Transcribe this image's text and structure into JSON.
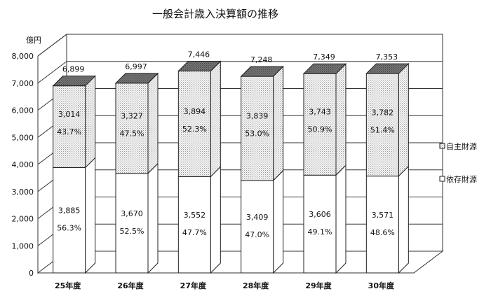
{
  "chart_data": {
    "type": "bar",
    "stacked": true,
    "title": "一般会計歳入決算額の推移",
    "ylabel": "億円",
    "ylim": [
      0,
      8000
    ],
    "yticks": [
      "0",
      "1,000",
      "2,000",
      "3,000",
      "4,000",
      "5,000",
      "6,000",
      "7,000",
      "8,000"
    ],
    "categories": [
      "25年度",
      "26年度",
      "27年度",
      "28年度",
      "29年度",
      "30年度"
    ],
    "totals": [
      "6,899",
      "6,997",
      "7,446",
      "7,248",
      "7,349",
      "7,353"
    ],
    "series": [
      {
        "name": "依存財源",
        "values": [
          3885,
          3670,
          3552,
          3409,
          3606,
          3571
        ],
        "labels": [
          "3,885",
          "3,670",
          "3,552",
          "3,409",
          "3,606",
          "3,571"
        ],
        "percents": [
          "56.3%",
          "52.5%",
          "47.7%",
          "47.0%",
          "49.1%",
          "48.6%"
        ],
        "color": "#ffffff"
      },
      {
        "name": "自主財源",
        "values": [
          3014,
          3327,
          3894,
          3839,
          3743,
          3782
        ],
        "labels": [
          "3,014",
          "3,327",
          "3,894",
          "3,839",
          "3,743",
          "3,782"
        ],
        "percents": [
          "43.7%",
          "47.5%",
          "52.3%",
          "53.0%",
          "50.9%",
          "51.4%"
        ],
        "color": "#d9d9d9"
      }
    ],
    "legend": [
      "自主財源",
      "依存財源"
    ],
    "legend_position": "right",
    "grid": true
  }
}
